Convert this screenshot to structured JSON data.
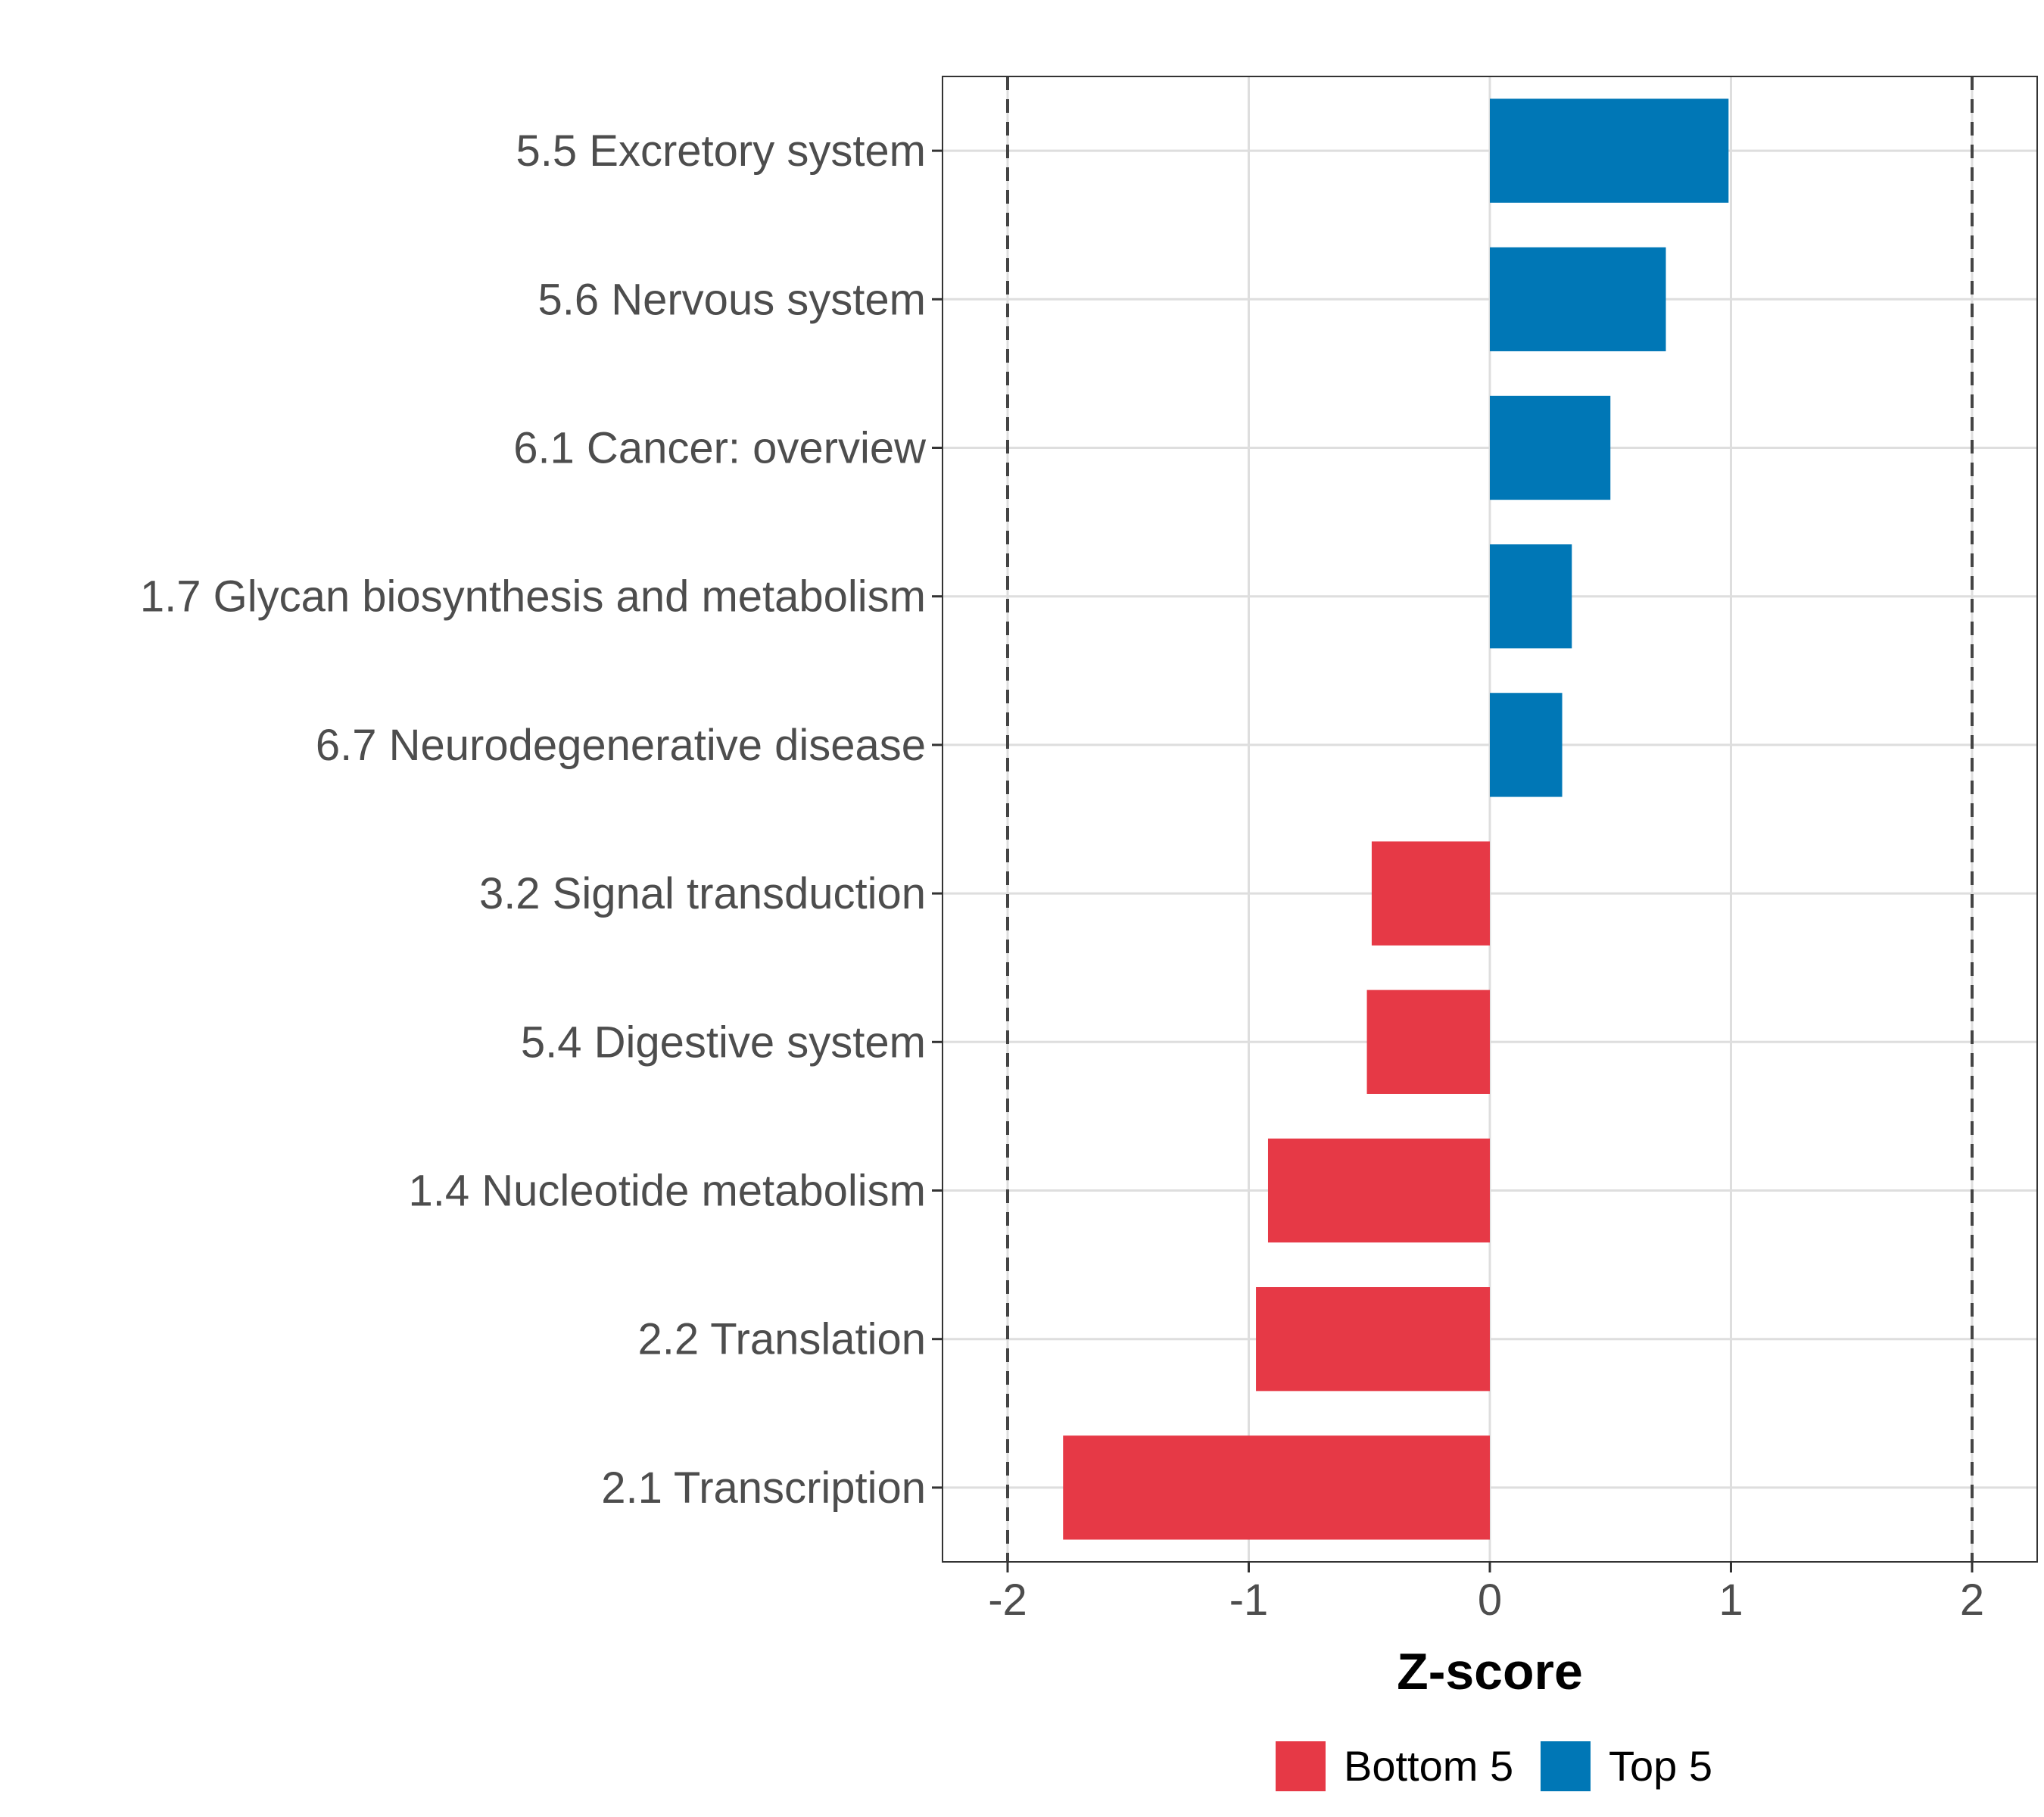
{
  "chart_data": {
    "type": "bar",
    "orientation": "horizontal",
    "categories": [
      "5.5 Excretory system",
      "5.6 Nervous system",
      "6.1 Cancer: overview",
      "1.7 Glycan biosynthesis and metabolism",
      "6.7 Neurodegenerative disease",
      "3.2 Signal transduction",
      "5.4 Digestive system",
      "1.4 Nucleotide metabolism",
      "2.2 Translation",
      "2.1 Transcription"
    ],
    "values": [
      0.99,
      0.73,
      0.5,
      0.34,
      0.3,
      -0.49,
      -0.51,
      -0.92,
      -0.97,
      -1.77
    ],
    "groups": [
      "Top 5",
      "Top 5",
      "Top 5",
      "Top 5",
      "Top 5",
      "Bottom 5",
      "Bottom 5",
      "Bottom 5",
      "Bottom 5",
      "Bottom 5"
    ],
    "xlabel": "Z-score",
    "ylabel": "",
    "xlim": [
      -2.27,
      2.27
    ],
    "xticks": [
      "-2",
      "-1",
      "0",
      "1",
      "2"
    ],
    "xtick_values": [
      -2,
      -1,
      0,
      1,
      2
    ],
    "reference_lines": [
      -2,
      2
    ],
    "grid": true,
    "legend": {
      "position": "bottom",
      "entries": [
        {
          "label": "Bottom 5",
          "color": "#e63946"
        },
        {
          "label": "Top 5",
          "color": "#0077b6"
        }
      ]
    },
    "colors": {
      "Top 5": "#0077b6",
      "Bottom 5": "#e63946"
    }
  }
}
